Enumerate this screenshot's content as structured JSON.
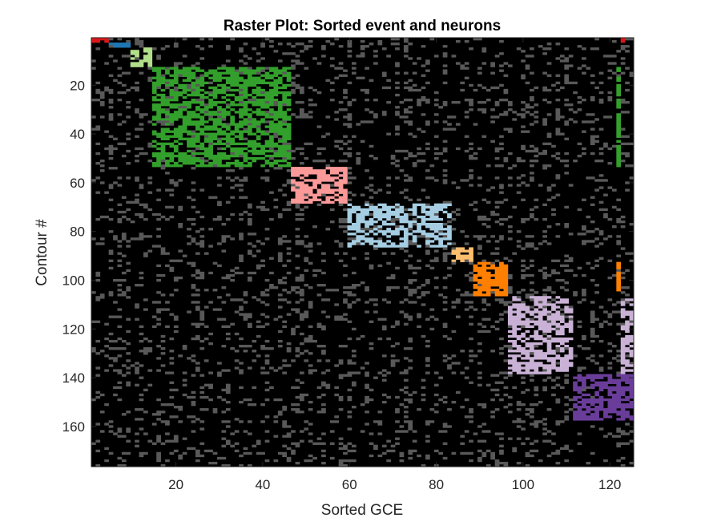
{
  "chart_data": {
    "type": "heatmap",
    "title": "Raster Plot: Sorted event and neurons",
    "xlabel": "Sorted GCE",
    "ylabel": "Contour #",
    "xlim": [
      0.5,
      125.5
    ],
    "ylim": [
      0.5,
      176.5
    ],
    "y_direction": "reverse",
    "x_ticks": [
      20,
      40,
      60,
      80,
      100,
      120
    ],
    "y_ticks": [
      20,
      40,
      60,
      80,
      100,
      120,
      140,
      160
    ],
    "n_events": 125,
    "n_neurons": 176,
    "background_color": "#000000",
    "unassigned_activity_color": "#595959",
    "background_activity_density": 0.12,
    "clusters": [
      {
        "events": [
          1,
          4
        ],
        "neurons": [
          1,
          2
        ],
        "color": "#d7191c",
        "density": 0.9
      },
      {
        "events": [
          5,
          9
        ],
        "neurons": [
          3,
          4
        ],
        "color": "#1f78b4",
        "density": 0.85
      },
      {
        "events": [
          10,
          14
        ],
        "neurons": [
          5,
          12
        ],
        "color": "#b2df8a",
        "density": 0.65
      },
      {
        "events": [
          15,
          46
        ],
        "neurons": [
          13,
          53
        ],
        "color": "#33a02c",
        "density": 0.6
      },
      {
        "events": [
          47,
          59
        ],
        "neurons": [
          54,
          68
        ],
        "color": "#fb9a99",
        "density": 0.7
      },
      {
        "events": [
          60,
          83
        ],
        "neurons": [
          69,
          86
        ],
        "color": "#a6cee3",
        "density": 0.55
      },
      {
        "events": [
          84,
          88
        ],
        "neurons": [
          87,
          92
        ],
        "color": "#fdbf6f",
        "density": 0.7
      },
      {
        "events": [
          89,
          96
        ],
        "neurons": [
          93,
          106
        ],
        "color": "#ff7f00",
        "density": 0.8
      },
      {
        "events": [
          97,
          111
        ],
        "neurons": [
          107,
          138
        ],
        "color": "#cab2d6",
        "density": 0.6
      },
      {
        "events": [
          112,
          125
        ],
        "neurons": [
          139,
          157
        ],
        "color": "#6a3d9a",
        "density": 0.65
      }
    ],
    "extra_segments": [
      {
        "events": [
          123,
          123
        ],
        "neurons": [
          1,
          2
        ],
        "color": "#d7191c",
        "density": 1.0
      },
      {
        "events": [
          122,
          122
        ],
        "neurons": [
          13,
          53
        ],
        "color": "#33a02c",
        "density": 0.7
      },
      {
        "events": [
          122,
          122
        ],
        "neurons": [
          93,
          104
        ],
        "color": "#ff7f00",
        "density": 0.9
      },
      {
        "events": [
          123,
          125
        ],
        "neurons": [
          107,
          138
        ],
        "color": "#cab2d6",
        "density": 0.6
      }
    ]
  }
}
